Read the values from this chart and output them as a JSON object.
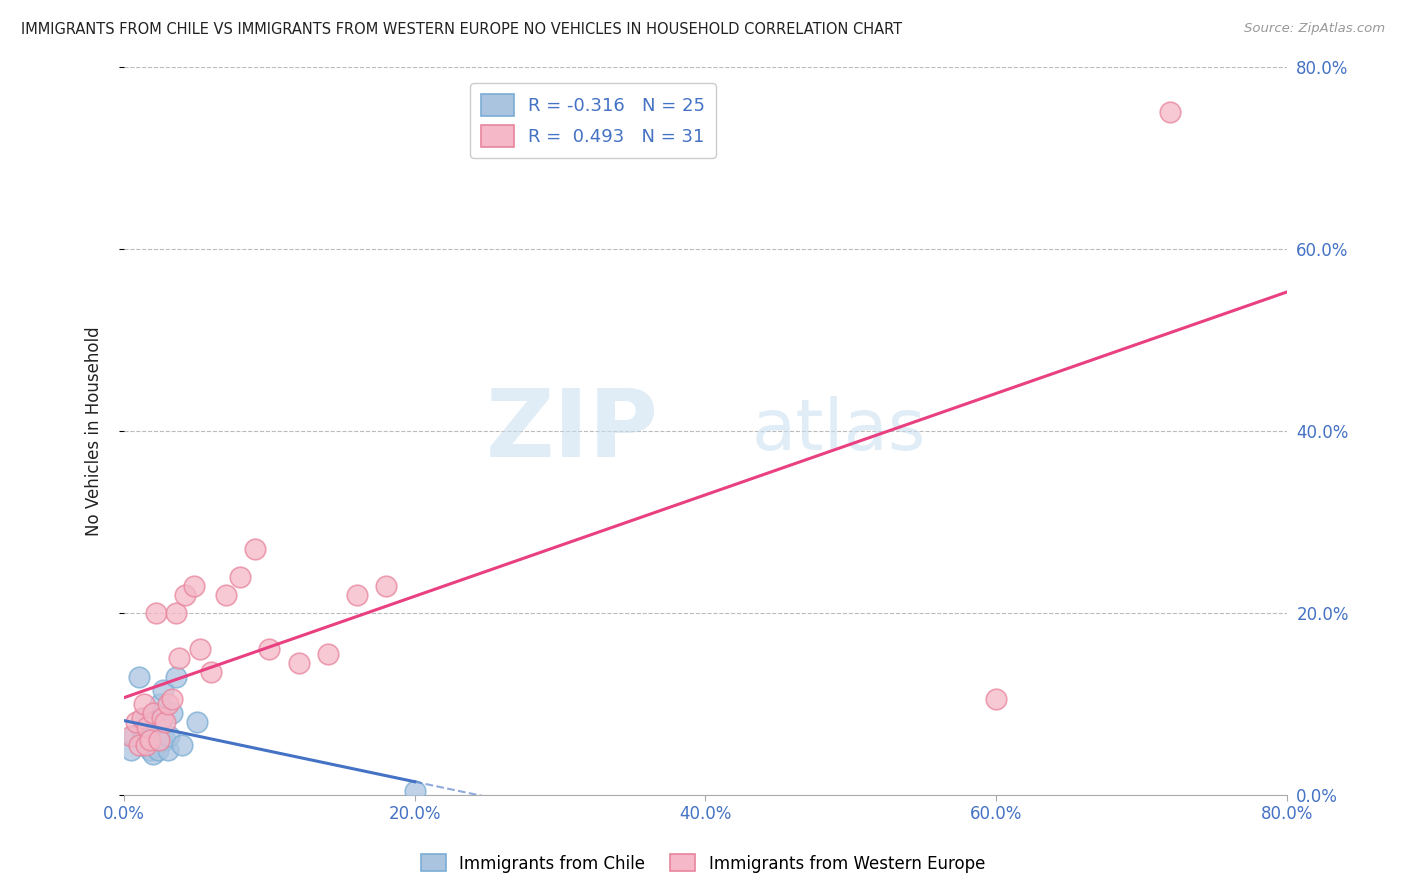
{
  "title": "IMMIGRANTS FROM CHILE VS IMMIGRANTS FROM WESTERN EUROPE NO VEHICLES IN HOUSEHOLD CORRELATION CHART",
  "source": "Source: ZipAtlas.com",
  "xlabel_bottom_chile": "Immigrants from Chile",
  "xlabel_bottom_we": "Immigrants from Western Europe",
  "ylabel": "No Vehicles in Household",
  "xlim": [
    0.0,
    0.8
  ],
  "ylim": [
    0.0,
    0.8
  ],
  "xticks": [
    0.0,
    0.2,
    0.4,
    0.6,
    0.8
  ],
  "yticks": [
    0.0,
    0.2,
    0.4,
    0.6,
    0.8
  ],
  "xtick_labels": [
    "0.0%",
    "20.0%",
    "40.0%",
    "60.0%",
    "80.0%"
  ],
  "ytick_labels": [
    "0.0%",
    "20.0%",
    "40.0%",
    "60.0%",
    "80.0%"
  ],
  "chile_color": "#aac4e0",
  "chile_edge_color": "#7aadd4",
  "we_color": "#f4b8c8",
  "we_edge_color": "#e8849c",
  "trend_chile_color": "#4472C4",
  "trend_we_color": "#E84080",
  "legend_label_chile": "R = -0.316   N = 25",
  "legend_label_we": "R =  0.493   N = 31",
  "watermark_zip": "ZIP",
  "watermark_atlas": "atlas",
  "background_color": "#ffffff",
  "grid_color": "#bbbbbb",
  "title_color": "#222222",
  "source_color": "#999999",
  "tick_color": "#4472C4",
  "label_color": "#222222",
  "chile_x": [
    0.005,
    0.007,
    0.01,
    0.012,
    0.013,
    0.015,
    0.016,
    0.017,
    0.018,
    0.019,
    0.02,
    0.021,
    0.022,
    0.023,
    0.024,
    0.025,
    0.027,
    0.028,
    0.03,
    0.031,
    0.033,
    0.036,
    0.04,
    0.05,
    0.2
  ],
  "chile_y": [
    0.05,
    0.065,
    0.13,
    0.07,
    0.06,
    0.085,
    0.075,
    0.06,
    0.05,
    0.07,
    0.045,
    0.09,
    0.08,
    0.05,
    0.065,
    0.1,
    0.115,
    0.06,
    0.05,
    0.065,
    0.09,
    0.13,
    0.055,
    0.08,
    0.005
  ],
  "we_x": [
    0.005,
    0.008,
    0.01,
    0.012,
    0.014,
    0.015,
    0.016,
    0.018,
    0.02,
    0.022,
    0.024,
    0.026,
    0.028,
    0.03,
    0.033,
    0.036,
    0.038,
    0.042,
    0.048,
    0.052,
    0.06,
    0.07,
    0.08,
    0.09,
    0.1,
    0.12,
    0.14,
    0.16,
    0.18,
    0.6,
    0.72
  ],
  "we_y": [
    0.065,
    0.08,
    0.055,
    0.085,
    0.1,
    0.055,
    0.075,
    0.06,
    0.09,
    0.2,
    0.06,
    0.085,
    0.08,
    0.1,
    0.105,
    0.2,
    0.15,
    0.22,
    0.23,
    0.16,
    0.135,
    0.22,
    0.24,
    0.27,
    0.16,
    0.145,
    0.155,
    0.22,
    0.23,
    0.105,
    0.75
  ]
}
